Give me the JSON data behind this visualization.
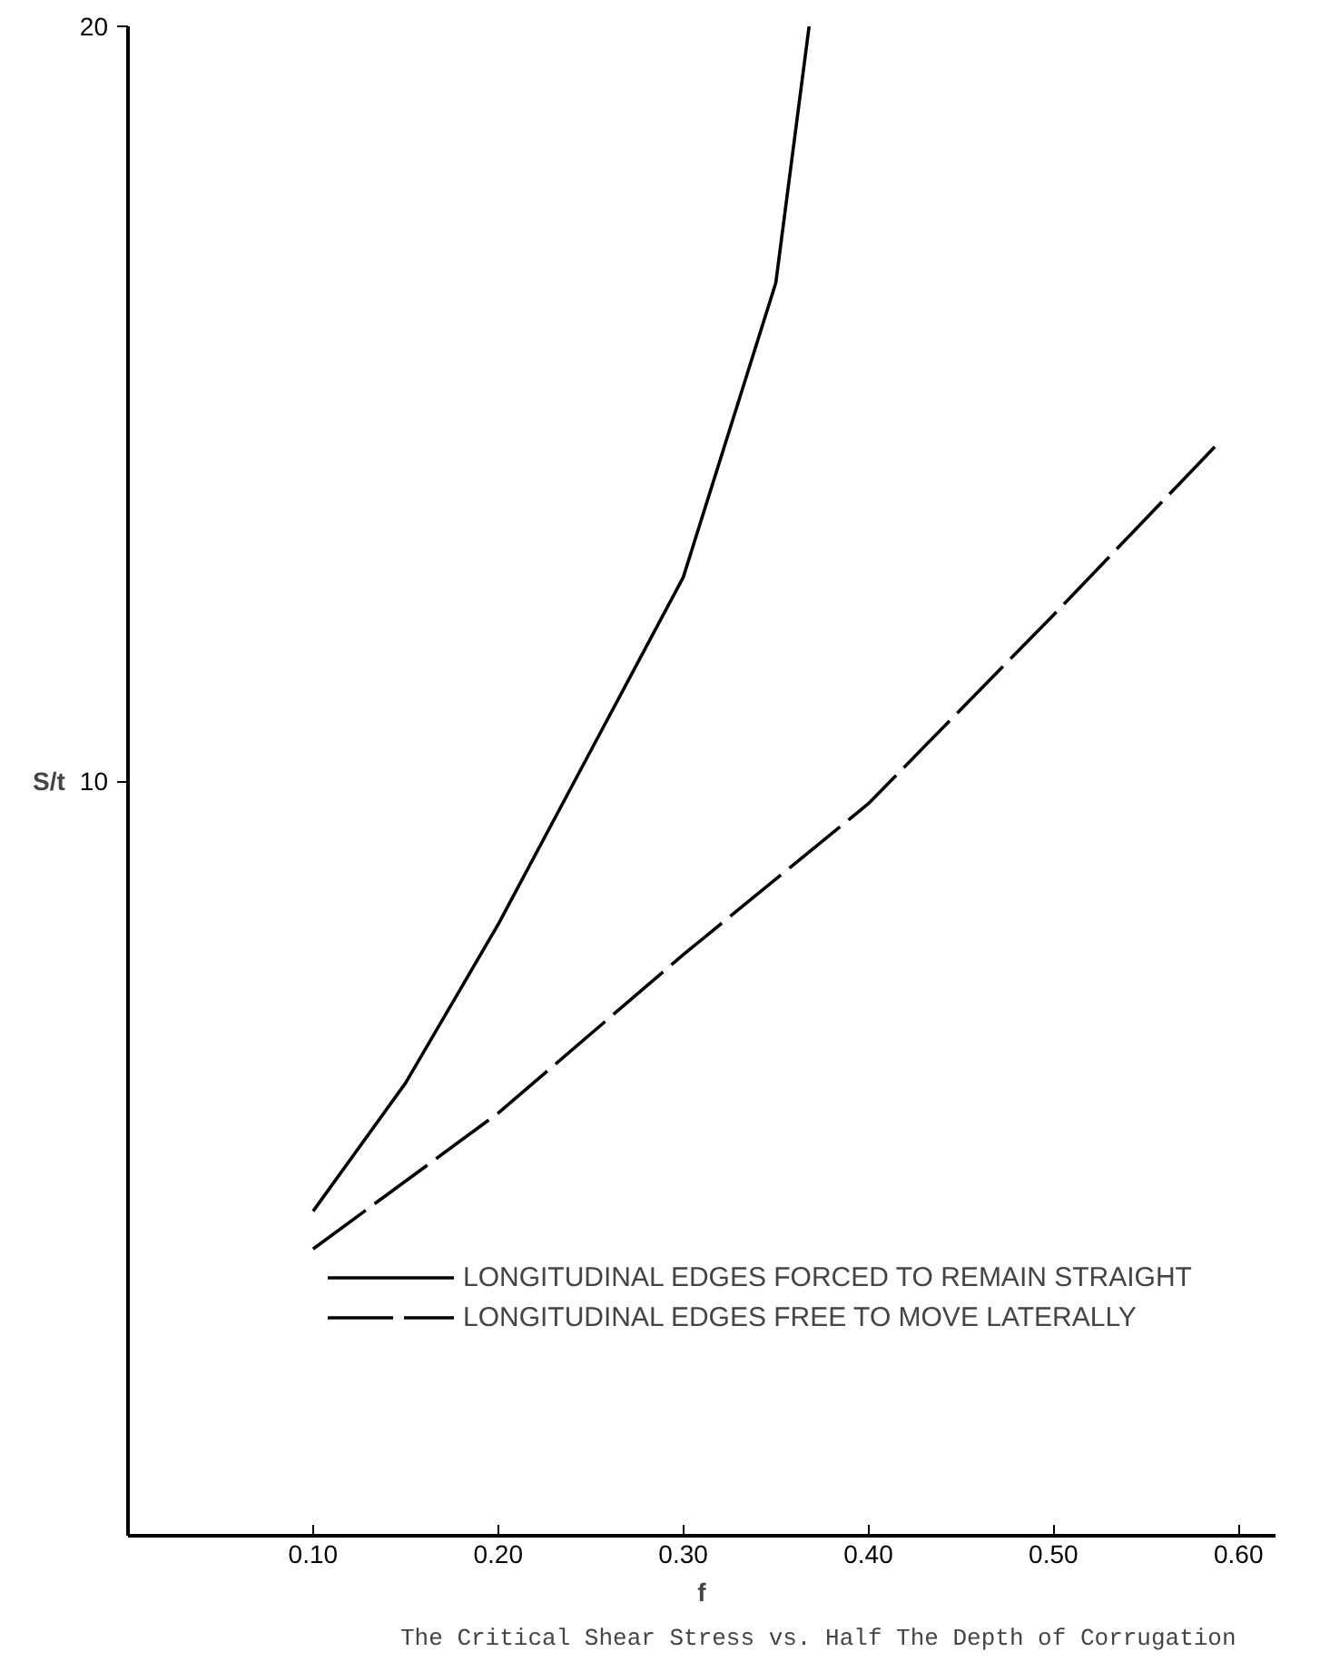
{
  "chart_data": {
    "type": "line",
    "xlabel": "f",
    "ylabel": "S/t",
    "annotations": [
      "The Critical Shear Stress vs. Half The Depth of Corrugation"
    ],
    "xlim": [
      0,
      0.62
    ],
    "ylim": [
      0,
      20
    ],
    "xticks": [
      {
        "value": 0.1,
        "label": "0.10"
      },
      {
        "value": 0.2,
        "label": "0.20"
      },
      {
        "value": 0.3,
        "label": "0.30"
      },
      {
        "value": 0.4,
        "label": "0.40"
      },
      {
        "value": 0.5,
        "label": "0.50"
      },
      {
        "value": 0.6,
        "label": "0.60"
      }
    ],
    "yticks": [
      10,
      20
    ],
    "grid": false,
    "legend": "bottom left",
    "marker": "none",
    "series": [
      {
        "name": "LONGITUDINAL EDGES FORCED TO REMAIN STRAIGHT",
        "color": "#000000",
        "line_style": "solid",
        "x": [
          0.1,
          0.15,
          0.2,
          0.25,
          0.3,
          0.35,
          0.368
        ],
        "values": [
          4.3,
          6.0,
          8.1,
          10.4,
          12.7,
          16.6,
          20.0
        ]
      },
      {
        "name": "LONGITUDINAL EDGES FREE TO MOVE LATERALLY",
        "color": "#000000",
        "line_style": "dashed",
        "x": [
          0.1,
          0.2,
          0.3,
          0.4,
          0.5,
          0.59
        ],
        "values": [
          3.8,
          5.6,
          7.7,
          9.7,
          12.2,
          14.5
        ]
      }
    ]
  }
}
